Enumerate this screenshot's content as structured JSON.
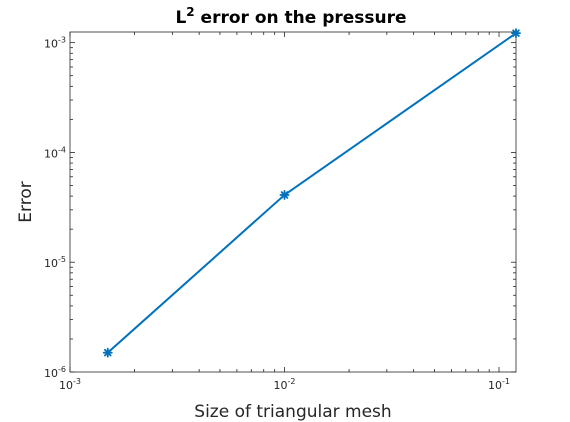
{
  "chart_data": {
    "type": "line",
    "title": {
      "base": "L",
      "superscript": "2",
      "rest": " error on the pressure"
    },
    "xlabel": "Size of triangular mesh",
    "ylabel": "Error",
    "xscale": "log",
    "yscale": "log",
    "xlim": [
      0.001,
      0.12
    ],
    "ylim": [
      1e-06,
      0.00125
    ],
    "grid": false,
    "x_ticks": [
      {
        "value": 0.001,
        "base": "10",
        "exp": "-3"
      },
      {
        "value": 0.01,
        "base": "10",
        "exp": "-2"
      },
      {
        "value": 0.1,
        "base": "10",
        "exp": "-1"
      }
    ],
    "y_ticks": [
      {
        "value": 1e-06,
        "base": "10",
        "exp": "-6"
      },
      {
        "value": 1e-05,
        "base": "10",
        "exp": "-5"
      },
      {
        "value": 0.0001,
        "base": "10",
        "exp": "-4"
      },
      {
        "value": 0.001,
        "base": "10",
        "exp": "-3"
      }
    ],
    "series": [
      {
        "color": "#0072BD",
        "marker": "asterisk",
        "x": [
          0.0015,
          0.01,
          0.12
        ],
        "y": [
          1.5e-06,
          4.1e-05,
          0.00122
        ]
      }
    ]
  }
}
